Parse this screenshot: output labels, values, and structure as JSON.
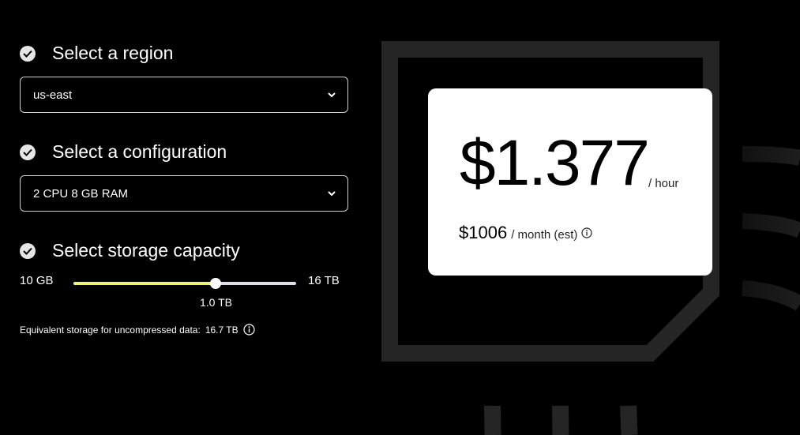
{
  "steps": [
    {
      "title": "Select a region",
      "icon": "check-circle-icon"
    },
    {
      "title": "Select a configuration",
      "icon": "check-circle-icon"
    },
    {
      "title": "Select storage capacity",
      "icon": "check-circle-icon"
    }
  ],
  "region": {
    "value": "us-east"
  },
  "configuration": {
    "value": "2 CPU 8 GB RAM"
  },
  "storage": {
    "min_label": "10 GB",
    "max_label": "16 TB",
    "value_label": "1.0 TB",
    "slider_percent": 64,
    "equivalent_label": "Equivalent storage for uncompressed data:",
    "equivalent_value": "16.7 TB"
  },
  "pricing": {
    "hourly": "$1.377",
    "hourly_unit": "/ hour",
    "monthly": "$1006",
    "monthly_unit": "/ month (est)"
  },
  "colors": {
    "accent": "#eef27a",
    "track": "#dde0e8",
    "decor": "#252525"
  }
}
